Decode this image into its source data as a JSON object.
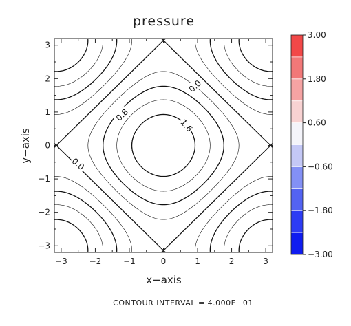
{
  "chart_data": {
    "type": "contour",
    "title": "pressure",
    "xlabel": "x−axis",
    "ylabel": "y−axis",
    "xlim": [
      -3.2,
      3.2
    ],
    "ylim": [
      -3.2,
      3.2
    ],
    "xticks": [
      "−3",
      "−2",
      "−1",
      "0",
      "1",
      "2",
      "3"
    ],
    "yticks": [
      "−3",
      "−2",
      "−1",
      "0",
      "1",
      "2",
      "3"
    ],
    "contour_levels": [
      -3.2,
      -2.8,
      -2.4,
      -2.0,
      -1.6,
      -1.2,
      -0.8,
      -0.4,
      0.0,
      0.4,
      0.8,
      1.2,
      1.6
    ],
    "contour_labels": [
      {
        "text": "0.0",
        "level": 0.0
      },
      {
        "text": "0.0",
        "level": 0.0
      },
      {
        "text": "0.8",
        "level": 0.8
      },
      {
        "text": "1.6",
        "level": 1.6
      }
    ],
    "contour_interval_text": "CONTOUR INTERVAL = 4.000E−01",
    "colorbar": {
      "ticks": [
        "3.00",
        "1.80",
        "0.60",
        "−0.60",
        "−1.80",
        "−3.00"
      ],
      "range": [
        -3.0,
        3.0
      ],
      "bins": 10,
      "colors": [
        "#0f1cf0",
        "#2d3cf4",
        "#5363f2",
        "#8390f5",
        "#c4c8f6",
        "#f4f4fa",
        "#f8d2d2",
        "#f5a3a3",
        "#f27878",
        "#f24848"
      ]
    }
  }
}
